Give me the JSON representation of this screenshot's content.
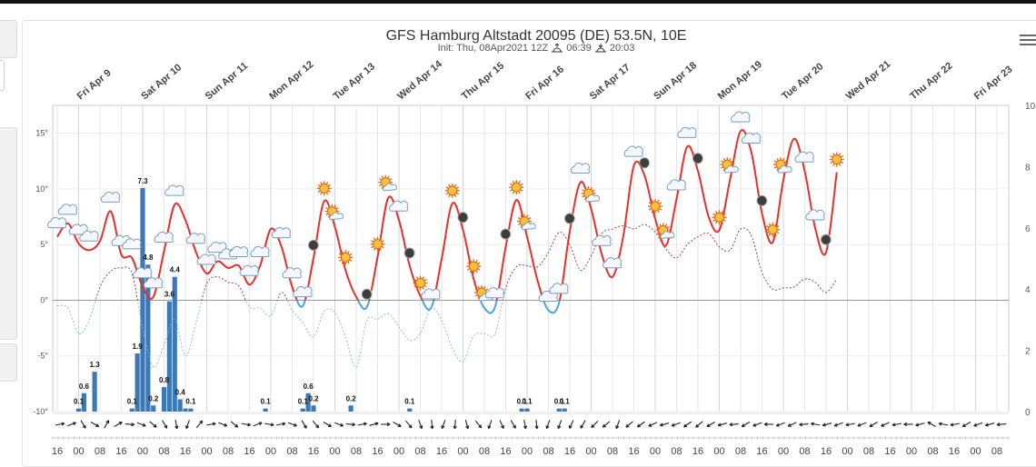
{
  "header": {
    "title": "GFS Hamburg Altstadt 20095 (DE) 53.5N, 10E",
    "init": "Init: Thu, 08Apr2021 12Z",
    "sunrise": "06:39",
    "sunset": "20:03"
  },
  "colors": {
    "temp_warm": "#e8302a",
    "temp_cold": "#4aa3df",
    "dew": "#a02a3a",
    "dew_cold": "#7fb4de",
    "precip": "#3b78b5",
    "grid": "#e5e5e5"
  },
  "chart_data": {
    "type": "line",
    "title": "GFS Hamburg Altstadt 20095 (DE) 53.5N, 10E",
    "x_step_hours": 4,
    "start_hour_label": "16",
    "days": [
      "Fri Apr 9",
      "Sat Apr 10",
      "Sun Apr 11",
      "Mon Apr 12",
      "Tue Apr 13",
      "Wed Apr 14",
      "Thu Apr 15",
      "Fri Apr 16",
      "Sat Apr 17",
      "Sun Apr 18",
      "Mon Apr 19",
      "Tue Apr 20",
      "Wed Apr 21",
      "Thu Apr 22",
      "Fri Apr 23"
    ],
    "x_tick_labels": [
      "16",
      "00",
      "08",
      "16",
      "00",
      "08",
      "16",
      "00",
      "08",
      "16",
      "00",
      "08",
      "16",
      "00",
      "08",
      "16",
      "00",
      "08",
      "16",
      "00",
      "08",
      "16",
      "00",
      "08",
      "16",
      "00",
      "08",
      "16",
      "00",
      "08",
      "16",
      "00",
      "08",
      "16",
      "00",
      "08",
      "16",
      "00",
      "08",
      "16",
      "00",
      "08",
      "16",
      "00",
      "08"
    ],
    "y_left": {
      "ticks": [
        "-10°",
        "-5°",
        "0°",
        "5°",
        "10°",
        "15°"
      ],
      "range": [
        -10,
        17.5
      ]
    },
    "y_right": {
      "ticks": [
        "0",
        "2",
        "4",
        "6",
        "8",
        "10"
      ],
      "range": [
        0,
        10
      ]
    },
    "temperature": [
      5.7,
      6.9,
      5.1,
      4.5,
      5.3,
      8.0,
      4.1,
      3.8,
      1.2,
      0.3,
      4.4,
      8.6,
      7.2,
      4.3,
      2.4,
      3.5,
      2.9,
      3.1,
      1.4,
      3.1,
      6.4,
      4.8,
      1.2,
      -0.5,
      3.8,
      8.9,
      6.6,
      2.7,
      0.3,
      -0.6,
      3.9,
      9.2,
      7.2,
      3.1,
      0.4,
      -0.7,
      3.7,
      8.7,
      6.3,
      1.9,
      -0.7,
      -0.6,
      4.8,
      9.0,
      5.7,
      1.7,
      -0.9,
      -0.2,
      6.2,
      10.6,
      8.2,
      4.1,
      2.1,
      5.7,
      12.1,
      11.2,
      7.3,
      4.9,
      9.1,
      13.8,
      11.6,
      7.5,
      6.3,
      10.8,
      15.2,
      13.3,
      7.8,
      5.2,
      10.8,
      14.5,
      11.6,
      6.4,
      4.3,
      11.5
    ],
    "dew_point": [
      -0.5,
      -0.7,
      -3.0,
      -1.8,
      1.2,
      2.6,
      2.9,
      2.4,
      -2.5,
      -6.0,
      -4.0,
      -1.7,
      -5.0,
      -2.0,
      1.5,
      2.1,
      1.6,
      1.3,
      -0.6,
      -0.7,
      -1.4,
      0.7,
      -0.9,
      -2.0,
      -3.3,
      -1.0,
      -1.1,
      -3.3,
      -6.0,
      -1.8,
      -1.7,
      -1.2,
      -2.4,
      -3.6,
      -3.0,
      -0.7,
      -1.8,
      -4.3,
      -5.5,
      -3.2,
      -3.0,
      -3.0,
      1.1,
      3.0,
      3.1,
      3.0,
      4.3,
      6.1,
      5.0,
      2.7,
      4.0,
      6.0,
      6.4,
      6.7,
      6.4,
      6.8,
      6.1,
      4.6,
      3.8,
      5.0,
      5.7,
      6.0,
      4.8,
      4.5,
      6.4,
      5.8,
      2.5,
      1.0,
      1.1,
      1.2,
      1.9,
      1.6,
      0.7,
      1.9
    ],
    "precipitation_mm": [
      0,
      0,
      0,
      0,
      0.1,
      0.6,
      0,
      1.3,
      0,
      0,
      0,
      0,
      0,
      0,
      0.1,
      1.9,
      7.3,
      4.8,
      0.2,
      0,
      0.8,
      3.6,
      4.4,
      0.4,
      0.1,
      0.1,
      0,
      0,
      0,
      0,
      0,
      0,
      0,
      0,
      0,
      0,
      0,
      0,
      0,
      0.1,
      0,
      0,
      0,
      0,
      0,
      0,
      0.1,
      0.6,
      0.2,
      0,
      0,
      0,
      0,
      0,
      0,
      0.2,
      0,
      0,
      0,
      0,
      0,
      0,
      0,
      0,
      0,
      0,
      0.1,
      0,
      0,
      0,
      0,
      0,
      0,
      0,
      0,
      0,
      0,
      0,
      0,
      0,
      0,
      0,
      0,
      0,
      0,
      0,
      0,
      0.1,
      0.1,
      0,
      0,
      0,
      0,
      0,
      0.1,
      0.1,
      0,
      0,
      0,
      0,
      0,
      0
    ],
    "precip_labels": [
      {
        "index": 4,
        "text": "0.1"
      },
      {
        "index": 5,
        "text": "0.6"
      },
      {
        "index": 7,
        "text": "1.3"
      },
      {
        "index": 14,
        "text": "0.1"
      },
      {
        "index": 15,
        "text": "1.9"
      },
      {
        "index": 16,
        "text": "7.3"
      },
      {
        "index": 17,
        "text": "4.8"
      },
      {
        "index": 18,
        "text": "0.2"
      },
      {
        "index": 20,
        "text": "0.8"
      },
      {
        "index": 21,
        "text": "3.6"
      },
      {
        "index": 22,
        "text": "4.4"
      },
      {
        "index": 23,
        "text": "0.4"
      },
      {
        "index": 25,
        "text": "0.1"
      },
      {
        "index": 39,
        "text": "0.1"
      },
      {
        "index": 46,
        "text": "0.1"
      },
      {
        "index": 47,
        "text": "0.6"
      },
      {
        "index": 48,
        "text": "0.2"
      },
      {
        "index": 55,
        "text": "0.2"
      },
      {
        "index": 66,
        "text": "0.1"
      },
      {
        "index": 87,
        "text": "0.1"
      },
      {
        "index": 88,
        "text": "0.1"
      },
      {
        "index": 94,
        "text": "0.1"
      },
      {
        "index": 95,
        "text": "0.1"
      }
    ],
    "weather_icons": [
      "cloud",
      "cloud",
      "cloud",
      "cloud",
      "cloud",
      "cloud",
      "cloud",
      "cloud",
      "cloud",
      "cloud",
      "cloud",
      "cloud",
      "cloud",
      "cloud",
      "cloud",
      "cloud",
      "cloud",
      "cloud",
      "cloud",
      "cloud",
      "cloud",
      "moon",
      "sun",
      "sun-cloud",
      "sun",
      "moon",
      "sun",
      "sun-cloud",
      "cloud",
      "moon",
      "sun",
      "cloud",
      "sun",
      "moon",
      "sun",
      "sun-cloud",
      "cloud",
      "moon",
      "sun",
      "sun-cloud",
      "cloud",
      "cloud",
      "moon",
      "cloud",
      "sun-cloud",
      "cloud",
      "cloud",
      "cloud",
      "moon",
      "sun",
      "sun-cloud",
      "cloud",
      "cloud",
      "moon",
      "sun",
      "sun-cloud",
      "cloud",
      "cloud",
      "moon",
      "sun",
      "sun-cloud",
      "cloud",
      "cloud",
      "moon",
      "sun"
    ],
    "wind_directions_deg": [
      80,
      70,
      150,
      120,
      30,
      60,
      95,
      110,
      130,
      150,
      170,
      200,
      40,
      80,
      110,
      130,
      100,
      70,
      100,
      80,
      110,
      150,
      140,
      120,
      110,
      95,
      80,
      75,
      90,
      120,
      140,
      160,
      175,
      200,
      185,
      165,
      140,
      200,
      155,
      150,
      170,
      175,
      200,
      200,
      205,
      210,
      225,
      230,
      200,
      230,
      235,
      245,
      255,
      250,
      235,
      230,
      240,
      255,
      265,
      240,
      250,
      270,
      250,
      245,
      265,
      280,
      255,
      250,
      260,
      250,
      240,
      245,
      260,
      270,
      255,
      300,
      280,
      260,
      240,
      250,
      255,
      265
    ],
    "legend_position": "none"
  }
}
